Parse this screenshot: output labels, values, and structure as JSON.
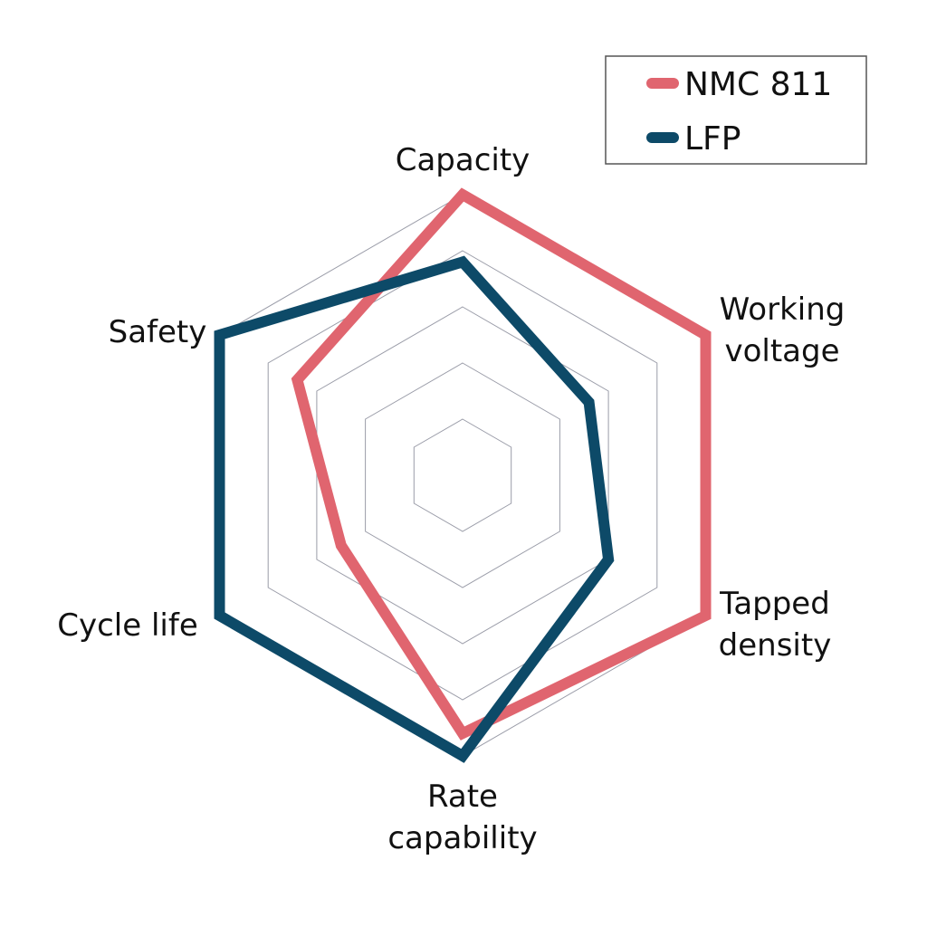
{
  "chart_data": {
    "type": "radar",
    "axes": [
      {
        "label_lines": [
          "Capacity"
        ]
      },
      {
        "label_lines": [
          "Working",
          "voltage"
        ]
      },
      {
        "label_lines": [
          "Tapped",
          "density"
        ]
      },
      {
        "label_lines": [
          "Rate",
          "capability"
        ]
      },
      {
        "label_lines": [
          "Cycle life"
        ]
      },
      {
        "label_lines": [
          "Safety"
        ]
      }
    ],
    "rmax": 5,
    "grid_levels": [
      1,
      2,
      3,
      4,
      5
    ],
    "grid": true,
    "tick_labels_visible": false,
    "legend_position": "top-right",
    "series": [
      {
        "name": "NMC 811",
        "color": "#E0656F",
        "values": [
          5.0,
          5.0,
          5.0,
          4.6,
          2.5,
          3.4
        ]
      },
      {
        "name": "LFP",
        "color": "#0D4A68",
        "values": [
          3.8,
          2.6,
          3.0,
          5.0,
          5.0,
          5.0
        ]
      }
    ],
    "grid_color": "#9a9ca8",
    "legend_border_color": "#555555"
  }
}
